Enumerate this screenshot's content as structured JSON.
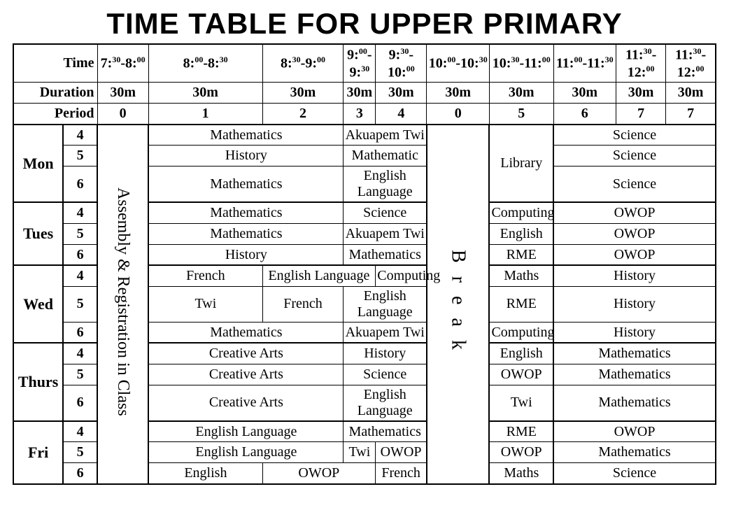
{
  "title": "TIME TABLE FOR UPPER PRIMARY",
  "hdr": {
    "time": "Time",
    "dur": "Duration",
    "per": "Period"
  },
  "times": [
    "7:<sup>30</sup>-8:<sup>00</sup>",
    "8:<sup>00</sup>-8:<sup>30</sup>",
    "8:<sup>30</sup>-9:<sup>00</sup>",
    "9:<sup>00</sup>-9:<sup>30</sup>",
    "9:<sup>30</sup>-10:<sup>00</sup>",
    "10:<sup>00</sup>-10:<sup>30</sup>",
    "10:<sup>30</sup>-11:<sup>00</sup>",
    "11:<sup>00</sup>-11:<sup>30</sup>",
    "11:<sup>30</sup>-12:<sup>00</sup>"
  ],
  "durations": [
    "30m",
    "30m",
    "30m",
    "30m",
    "30m",
    "30m",
    "30m",
    "30m",
    "30m"
  ],
  "periods": [
    "0",
    "1",
    "2",
    "3",
    "4",
    "0",
    "5",
    "6",
    "7"
  ],
  "assembly": "Assembly & Registration in Class",
  "break": "B r e a k",
  "days": [
    "Mon",
    "Tues",
    "Wed",
    "Thurs",
    "Fri"
  ],
  "classes": [
    "4",
    "5",
    "6"
  ],
  "mon": {
    "r4": {
      "a": "Mathematics",
      "b": "Akuapem Twi",
      "d": "Science"
    },
    "r5": {
      "a": "History",
      "b": "Mathematic",
      "c": "Library",
      "d": "Science"
    },
    "r6": {
      "a": "Mathematics",
      "b": "English Language",
      "d": "Science"
    }
  },
  "tue": {
    "r4": {
      "a": "Mathematics",
      "b": "Science",
      "c": "Computing",
      "d": "OWOP"
    },
    "r5": {
      "a": "Mathematics",
      "b": "Akuapem Twi",
      "c": "English",
      "d": "OWOP"
    },
    "r6": {
      "a": "History",
      "b": "Mathematics",
      "c": "RME",
      "d": "OWOP"
    }
  },
  "wed": {
    "r4": {
      "a": "French",
      "b": "English Language",
      "bc": "Computing",
      "c": "Maths",
      "d": "History"
    },
    "r5": {
      "a": "Twi",
      "a2": "French",
      "b": "English Language",
      "c": "RME",
      "d": "History"
    },
    "r6": {
      "a": "Mathematics",
      "b": "Akuapem Twi",
      "c": "Computing",
      "d": "History"
    }
  },
  "thu": {
    "r4": {
      "a": "Creative Arts",
      "b": "History",
      "c": "English",
      "d": "Mathematics"
    },
    "r5": {
      "a": "Creative Arts",
      "b": "Science",
      "c": "OWOP",
      "d": "Mathematics"
    },
    "r6": {
      "a": "Creative Arts",
      "b": "English Language",
      "c": "Twi",
      "d": "Mathematics"
    }
  },
  "fri": {
    "r4": {
      "a": "English Language",
      "b": "Mathematics",
      "c": "RME",
      "d": "OWOP"
    },
    "r5": {
      "a": "English Language",
      "b1": "Twi",
      "b2": "OWOP",
      "c": "OWOP",
      "d": "Mathematics"
    },
    "r6": {
      "a": "English",
      "b": "OWOP",
      "bc": "French",
      "c": "Maths",
      "d": "Science"
    }
  },
  "style": {
    "border_color": "#000000",
    "background": "#ffffff",
    "title_font": "Impact",
    "body_font": "Times New Roman",
    "title_fontsize": 42,
    "cell_fontsize": 20
  }
}
